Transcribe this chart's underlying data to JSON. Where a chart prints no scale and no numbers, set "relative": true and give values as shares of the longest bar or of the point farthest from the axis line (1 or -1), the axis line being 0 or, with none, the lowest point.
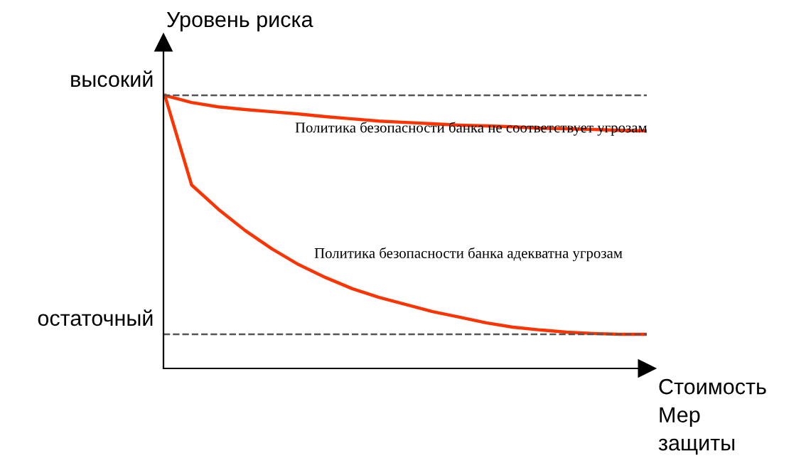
{
  "chart_data": {
    "type": "line",
    "relative": true,
    "ylabel": "Уровень риска",
    "xlabel": "Стоимость\nМер\nзащиты",
    "categories": [
      null,
      null,
      null,
      null,
      null,
      null,
      null,
      null,
      null,
      null,
      null,
      null,
      null,
      null,
      null,
      null,
      null,
      null,
      null
    ],
    "series": [
      {
        "name": "Политика безопасности банка не соответствует угрозам",
        "color": "#ff3300",
        "values": [
          1,
          0.974,
          0.958,
          0.948,
          0.94,
          0.932,
          0.922,
          0.914,
          0.906,
          0.901,
          0.896,
          0.891,
          0.888,
          0.885,
          0.88,
          0.878,
          0.875,
          0.872,
          0.87
        ]
      },
      {
        "name": "Политика безопасности банка адекватна угрозам",
        "color": "#ff3300",
        "values": [
          1,
          0.672,
          0.583,
          0.505,
          0.438,
          0.38,
          0.333,
          0.292,
          0.26,
          0.234,
          0.208,
          0.188,
          0.167,
          0.151,
          0.141,
          0.133,
          0.128,
          0.125,
          0.125
        ]
      }
    ],
    "ref_lines": [
      {
        "axis": "y",
        "value": 1,
        "label": "высокий",
        "color": "#555555",
        "line_style": "dashed"
      },
      {
        "axis": "y",
        "value": 0.125,
        "label": "остаточный",
        "color": "#555555",
        "line_style": "dashed"
      }
    ],
    "legend": false,
    "marker": "none",
    "line_style": "solid"
  }
}
